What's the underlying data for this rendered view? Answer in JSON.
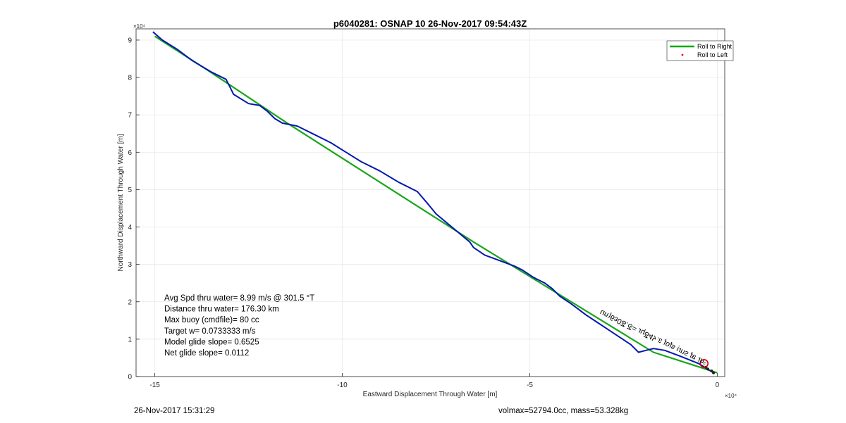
{
  "chart_data": {
    "type": "line",
    "title": "p6040281: OSNAP 10 26-Nov-2017 09:54:43Z",
    "xlabel": "Eastward Displacement Through Water [m]",
    "ylabel": "Northward Displacement Through Water [m]",
    "x_multiplier": "×10⁴",
    "y_multiplier": "×10⁴",
    "xlim": [
      -15.5,
      0.2
    ],
    "ylim": [
      0,
      9.3
    ],
    "x_ticks": [
      -15,
      -10,
      -5,
      0
    ],
    "x_tick_labels": [
      "-15",
      "-10",
      "-5",
      "0"
    ],
    "y_ticks": [
      0,
      1,
      2,
      3,
      4,
      5,
      6,
      7,
      8,
      9
    ],
    "y_tick_labels": [
      "0",
      "1",
      "2",
      "3",
      "4",
      "5",
      "6",
      "7",
      "8",
      "9"
    ],
    "grid": true,
    "legend_position": "top-right",
    "legend": [
      {
        "label": "Roll to Right",
        "color": "#00aa00",
        "marker": "line"
      },
      {
        "label": "Roll to Left",
        "color": "#ff0000",
        "marker": "dot"
      }
    ],
    "series": [
      {
        "name": "Roll to Right",
        "color": "#1aa51a",
        "x": [
          -15.0,
          -13.6,
          -11.5,
          -6.5,
          -1.7,
          0.0
        ],
        "y": [
          9.1,
          8.2,
          6.8,
          3.6,
          0.65,
          0.1
        ]
      },
      {
        "color": "#0018b0",
        "x": [
          -15.05,
          -14.8,
          -14.4,
          -14.0,
          -13.5,
          -13.1,
          -13.0,
          -12.9,
          -12.5,
          -12.2,
          -12.0,
          -11.8,
          -11.6,
          -11.2,
          -10.8,
          -10.3,
          -9.9,
          -9.5,
          -9.0,
          -8.5,
          -8.0,
          -7.7,
          -7.5,
          -7.2,
          -6.9,
          -6.6,
          -6.5,
          -6.2,
          -5.8,
          -5.4,
          -5.2,
          -4.9,
          -4.6,
          -4.4,
          -4.2,
          -3.9,
          -3.7,
          -3.5,
          -3.2,
          -2.9,
          -2.6,
          -2.3,
          -2.1,
          -1.9,
          -1.7,
          -1.4,
          -1.0,
          -0.5,
          -0.1
        ],
        "y": [
          9.22,
          9.0,
          8.75,
          8.45,
          8.15,
          7.95,
          7.75,
          7.55,
          7.3,
          7.25,
          7.1,
          6.9,
          6.78,
          6.7,
          6.5,
          6.25,
          6.0,
          5.75,
          5.5,
          5.2,
          4.95,
          4.6,
          4.35,
          4.1,
          3.85,
          3.6,
          3.45,
          3.25,
          3.1,
          2.95,
          2.85,
          2.65,
          2.5,
          2.35,
          2.15,
          1.95,
          1.8,
          1.65,
          1.45,
          1.25,
          1.05,
          0.85,
          0.65,
          0.7,
          0.75,
          0.7,
          0.55,
          0.35,
          0.1
        ]
      }
    ],
    "markers": [
      {
        "x": -0.35,
        "y": 0.35,
        "color": "#cc0000",
        "shape": "circle"
      }
    ],
    "annotations": [
      "Avg Spd thru water=  8.99 m/s @ 301.5 °T",
      "Distance thru water= 176.30 km",
      "Max buoy (cmdfile)= 80 cc",
      "Target w= 0.0733333 m/s",
      "Model glide slope= 0.6525",
      "Net glide slope= 0.0112"
    ],
    "rotated_label": "m6ɛ0ᘔ.ᘔ= ɹɥᘔ4ᔭ.ɛ ɹoɟs ǝɹns ǝɹns",
    "rotated_label_visible": "unɿ6ɜ0ᘔ.ᘔ= ɹɥᘔ4ᔭ.ɛ ɟoɟs ᴉɹns ɟɐ ɹnᶜ"
  },
  "footer": {
    "left": "26-Nov-2017 15:31:29",
    "right": "volmax=52794.0cc, mass=53.328kg"
  }
}
